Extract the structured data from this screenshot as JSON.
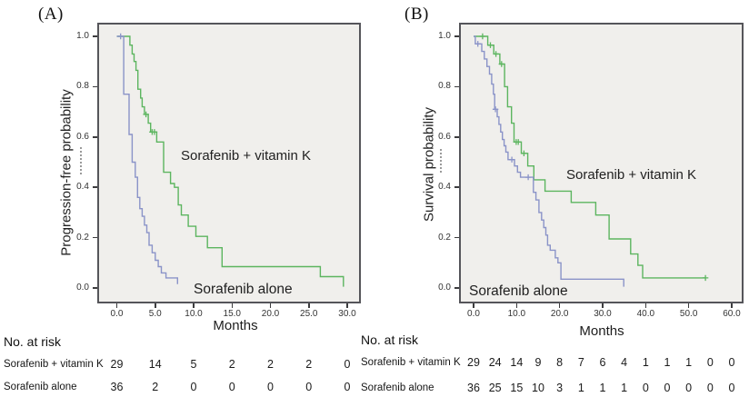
{
  "colors": {
    "combo_line": "#5cb55f",
    "alone_line": "#8a93c8",
    "plot_background": "#f0efec",
    "plot_border": "#55555a",
    "text": "#222222"
  },
  "panels": [
    {
      "label": "(A)",
      "y_axis_title": "Progression-free probability",
      "x_axis_title": "Months",
      "annotations": {
        "combo": "Sorafenib + vitamin K",
        "alone": "Sorafenib alone"
      }
    },
    {
      "label": "(B)",
      "y_axis_title": "Survival probability",
      "x_axis_title": "Months",
      "annotations": {
        "combo": "Sorafenib + vitamin K",
        "alone": "Sorafenib alone"
      }
    }
  ],
  "chart_data": [
    {
      "type": "line",
      "subtype": "kaplan_meier_step",
      "panel": "A",
      "xlabel": "Months",
      "ylabel": "Progression-free probability",
      "xlim": [
        0,
        30
      ],
      "ylim": [
        0.0,
        1.0
      ],
      "grid": false,
      "legend_position": "in-plot text annotations",
      "x_tick_values": [
        0,
        5,
        10,
        15,
        20,
        25,
        30
      ],
      "x_tick_labels": [
        "0.0",
        "5.0",
        "10.0",
        "15.0",
        "20.0",
        "25.0",
        "30.0"
      ],
      "y_tick_values": [
        1.0,
        0.8,
        0.6,
        0.4,
        0.2,
        0.0
      ],
      "y_tick_labels": [
        "1.0",
        "0.8",
        "0.6",
        "0.4",
        "0.2",
        "0.0"
      ],
      "series": [
        {
          "name": "Sorafenib + vitamin K",
          "color": "#5cb55f",
          "steps": [
            [
              0,
              1.0
            ],
            [
              1.7,
              1.0
            ],
            [
              1.7,
              0.965
            ],
            [
              2.0,
              0.965
            ],
            [
              2.0,
              0.93
            ],
            [
              2.25,
              0.93
            ],
            [
              2.25,
              0.9
            ],
            [
              2.5,
              0.9
            ],
            [
              2.5,
              0.865
            ],
            [
              2.75,
              0.865
            ],
            [
              2.75,
              0.79
            ],
            [
              3.1,
              0.79
            ],
            [
              3.1,
              0.755
            ],
            [
              3.3,
              0.755
            ],
            [
              3.3,
              0.72
            ],
            [
              3.6,
              0.72
            ],
            [
              3.6,
              0.69
            ],
            [
              4.1,
              0.69
            ],
            [
              4.1,
              0.655
            ],
            [
              4.4,
              0.655
            ],
            [
              4.4,
              0.62
            ],
            [
              5.2,
              0.62
            ],
            [
              5.2,
              0.58
            ],
            [
              6.1,
              0.58
            ],
            [
              6.1,
              0.46
            ],
            [
              7.0,
              0.46
            ],
            [
              7.0,
              0.415
            ],
            [
              7.5,
              0.415
            ],
            [
              7.5,
              0.4
            ],
            [
              8.0,
              0.4
            ],
            [
              8.0,
              0.33
            ],
            [
              8.4,
              0.33
            ],
            [
              8.4,
              0.29
            ],
            [
              9.3,
              0.29
            ],
            [
              9.3,
              0.245
            ],
            [
              10.3,
              0.245
            ],
            [
              10.3,
              0.205
            ],
            [
              11.8,
              0.205
            ],
            [
              11.8,
              0.16
            ],
            [
              13.7,
              0.16
            ],
            [
              13.7,
              0.085
            ],
            [
              26.5,
              0.085
            ],
            [
              26.5,
              0.045
            ],
            [
              29.5,
              0.045
            ],
            [
              29.5,
              0.005
            ]
          ],
          "censor_marks": [
            [
              3.8,
              0.69
            ],
            [
              4.6,
              0.62
            ],
            [
              4.9,
              0.62
            ]
          ]
        },
        {
          "name": "Sorafenib alone",
          "color": "#8a93c8",
          "steps": [
            [
              0,
              1.0
            ],
            [
              0.9,
              1.0
            ],
            [
              0.9,
              0.77
            ],
            [
              1.6,
              0.77
            ],
            [
              1.6,
              0.61
            ],
            [
              2.0,
              0.61
            ],
            [
              2.0,
              0.5
            ],
            [
              2.4,
              0.5
            ],
            [
              2.4,
              0.44
            ],
            [
              2.7,
              0.44
            ],
            [
              2.7,
              0.36
            ],
            [
              3.0,
              0.36
            ],
            [
              3.0,
              0.315
            ],
            [
              3.3,
              0.315
            ],
            [
              3.3,
              0.285
            ],
            [
              3.6,
              0.285
            ],
            [
              3.6,
              0.25
            ],
            [
              3.9,
              0.25
            ],
            [
              3.9,
              0.22
            ],
            [
              4.2,
              0.22
            ],
            [
              4.2,
              0.17
            ],
            [
              4.6,
              0.17
            ],
            [
              4.6,
              0.14
            ],
            [
              5.0,
              0.14
            ],
            [
              5.0,
              0.11
            ],
            [
              5.4,
              0.11
            ],
            [
              5.4,
              0.085
            ],
            [
              5.8,
              0.085
            ],
            [
              5.8,
              0.06
            ],
            [
              6.4,
              0.06
            ],
            [
              6.4,
              0.04
            ],
            [
              7.9,
              0.04
            ],
            [
              7.9,
              0.015
            ]
          ],
          "censor_marks": [
            [
              0.5,
              1.0
            ]
          ]
        }
      ],
      "at_risk": {
        "title": "No. at risk",
        "col_months": [
          0,
          5,
          10,
          15,
          20,
          25,
          30
        ],
        "rows": [
          {
            "label": "Sorafenib + vitamin K",
            "values": [
              "29",
              "14",
              "5",
              "2",
              "2",
              "2",
              "0"
            ]
          },
          {
            "label": "Sorafenib  alone",
            "values": [
              "36",
              "2",
              "0",
              "0",
              "0",
              "0",
              "0"
            ]
          }
        ]
      }
    },
    {
      "type": "line",
      "subtype": "kaplan_meier_step",
      "panel": "B",
      "xlabel": "Months",
      "ylabel": "Survival probability",
      "xlim": [
        0,
        60
      ],
      "ylim": [
        0.0,
        1.0
      ],
      "grid": false,
      "legend_position": "in-plot text annotations",
      "x_tick_values": [
        0,
        10,
        20,
        30,
        40,
        50,
        60
      ],
      "x_tick_labels": [
        "0.0",
        "10.0",
        "20.0",
        "30.0",
        "40.0",
        "50.0",
        "60.0"
      ],
      "y_tick_values": [
        1.0,
        0.8,
        0.6,
        0.4,
        0.2,
        0.0
      ],
      "y_tick_labels": [
        "1.0",
        "0.8",
        "0.6",
        "0.4",
        "0.2",
        "0.0"
      ],
      "series": [
        {
          "name": "Sorafenib + vitamin K",
          "color": "#5cb55f",
          "steps": [
            [
              0,
              1.0
            ],
            [
              3.3,
              1.0
            ],
            [
              3.3,
              0.965
            ],
            [
              4.7,
              0.965
            ],
            [
              4.7,
              0.93
            ],
            [
              6.1,
              0.93
            ],
            [
              6.1,
              0.89
            ],
            [
              7.2,
              0.89
            ],
            [
              7.2,
              0.8
            ],
            [
              7.9,
              0.8
            ],
            [
              7.9,
              0.72
            ],
            [
              8.8,
              0.72
            ],
            [
              8.8,
              0.655
            ],
            [
              9.4,
              0.655
            ],
            [
              9.4,
              0.58
            ],
            [
              11.1,
              0.58
            ],
            [
              11.1,
              0.535
            ],
            [
              12.6,
              0.535
            ],
            [
              12.6,
              0.485
            ],
            [
              14.0,
              0.485
            ],
            [
              14.0,
              0.43
            ],
            [
              16.6,
              0.43
            ],
            [
              16.6,
              0.385
            ],
            [
              22.7,
              0.385
            ],
            [
              22.7,
              0.34
            ],
            [
              28.4,
              0.34
            ],
            [
              28.4,
              0.29
            ],
            [
              31.5,
              0.29
            ],
            [
              31.5,
              0.195
            ],
            [
              36.5,
              0.195
            ],
            [
              36.5,
              0.135
            ],
            [
              38.2,
              0.135
            ],
            [
              38.2,
              0.09
            ],
            [
              39.3,
              0.09
            ],
            [
              39.3,
              0.04
            ],
            [
              53.9,
              0.04
            ]
          ],
          "censor_marks": [
            [
              2.1,
              1.0
            ],
            [
              3.9,
              0.965
            ],
            [
              5.2,
              0.93
            ],
            [
              6.5,
              0.89
            ],
            [
              9.9,
              0.58
            ],
            [
              10.4,
              0.58
            ],
            [
              11.7,
              0.535
            ],
            [
              53.9,
              0.04
            ]
          ]
        },
        {
          "name": "Sorafenib alone",
          "color": "#8a93c8",
          "steps": [
            [
              0,
              1.0
            ],
            [
              0.4,
              1.0
            ],
            [
              0.4,
              0.97
            ],
            [
              1.9,
              0.97
            ],
            [
              1.9,
              0.94
            ],
            [
              2.5,
              0.94
            ],
            [
              2.5,
              0.91
            ],
            [
              3.1,
              0.91
            ],
            [
              3.1,
              0.88
            ],
            [
              3.7,
              0.88
            ],
            [
              3.7,
              0.85
            ],
            [
              4.2,
              0.85
            ],
            [
              4.2,
              0.81
            ],
            [
              4.6,
              0.81
            ],
            [
              4.6,
              0.77
            ],
            [
              4.9,
              0.77
            ],
            [
              4.9,
              0.71
            ],
            [
              5.5,
              0.71
            ],
            [
              5.5,
              0.68
            ],
            [
              5.9,
              0.68
            ],
            [
              5.9,
              0.65
            ],
            [
              6.3,
              0.65
            ],
            [
              6.3,
              0.62
            ],
            [
              6.7,
              0.62
            ],
            [
              6.7,
              0.59
            ],
            [
              7.1,
              0.59
            ],
            [
              7.1,
              0.565
            ],
            [
              7.5,
              0.565
            ],
            [
              7.5,
              0.54
            ],
            [
              8.0,
              0.54
            ],
            [
              8.0,
              0.51
            ],
            [
              9.5,
              0.51
            ],
            [
              9.5,
              0.485
            ],
            [
              10.2,
              0.485
            ],
            [
              10.2,
              0.46
            ],
            [
              10.9,
              0.46
            ],
            [
              10.9,
              0.44
            ],
            [
              13.9,
              0.44
            ],
            [
              13.9,
              0.38
            ],
            [
              14.5,
              0.38
            ],
            [
              14.5,
              0.35
            ],
            [
              15.2,
              0.35
            ],
            [
              15.2,
              0.3
            ],
            [
              15.8,
              0.3
            ],
            [
              15.8,
              0.27
            ],
            [
              16.3,
              0.27
            ],
            [
              16.3,
              0.24
            ],
            [
              16.8,
              0.24
            ],
            [
              16.8,
              0.21
            ],
            [
              17.2,
              0.21
            ],
            [
              17.2,
              0.17
            ],
            [
              17.8,
              0.17
            ],
            [
              17.8,
              0.15
            ],
            [
              19.0,
              0.15
            ],
            [
              19.0,
              0.12
            ],
            [
              19.6,
              0.12
            ],
            [
              19.6,
              0.1
            ],
            [
              20.3,
              0.1
            ],
            [
              20.3,
              0.035
            ],
            [
              34.9,
              0.035
            ],
            [
              34.9,
              0.005
            ]
          ],
          "censor_marks": [
            [
              1.0,
              0.97
            ],
            [
              5.1,
              0.71
            ],
            [
              8.9,
              0.51
            ],
            [
              12.7,
              0.44
            ]
          ]
        }
      ],
      "at_risk": {
        "title": "No. at risk",
        "col_months": [
          0,
          5,
          10,
          15,
          20,
          25,
          30,
          35,
          40,
          45,
          50,
          55,
          60
        ],
        "rows": [
          {
            "label": "Sorafenib + vitamin K",
            "values": [
              "29",
              "24",
              "14",
              "9",
              "8",
              "7",
              "6",
              "4",
              "1",
              "1",
              "1",
              "0",
              "0"
            ]
          },
          {
            "label": "Sorafenib  alone",
            "values": [
              "36",
              "25",
              "15",
              "10",
              "3",
              "1",
              "1",
              "1",
              "0",
              "0",
              "0",
              "0",
              "0"
            ]
          }
        ]
      }
    }
  ]
}
